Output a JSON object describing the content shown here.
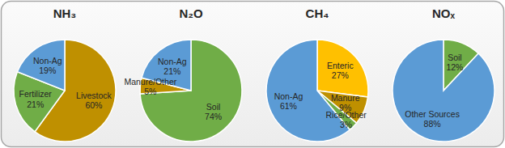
{
  "chart_data": [
    {
      "type": "pie",
      "title": "NH₃",
      "categories": [
        "Livestock",
        "Fertilizer",
        "Non-Ag"
      ],
      "values": [
        60,
        21,
        19
      ],
      "value_labels": [
        "60%",
        "21%",
        "19%"
      ],
      "colors": [
        "#BF9000",
        "#70AD47",
        "#5B9BD5"
      ],
      "data_labels": true
    },
    {
      "type": "pie",
      "title": "N₂O",
      "categories": [
        "Soil",
        "Manure/Other",
        "Non-Ag"
      ],
      "values": [
        74,
        5,
        21
      ],
      "value_labels": [
        "74%",
        "5%",
        "21%"
      ],
      "colors": [
        "#70AD47",
        "#BF9000",
        "#5B9BD5"
      ],
      "data_labels": true
    },
    {
      "type": "pie",
      "title": "CH₄",
      "categories": [
        "Enteric",
        "Manure",
        "Rice/Other",
        "Non-Ag"
      ],
      "values": [
        27,
        9,
        3,
        61
      ],
      "value_labels": [
        "27%",
        "9%",
        "3%",
        "61%"
      ],
      "colors": [
        "#FFC000",
        "#BF9000",
        "#70AD47",
        "#5B9BD5"
      ],
      "data_labels": true
    },
    {
      "type": "pie",
      "title": "NOₓ",
      "categories": [
        "Soil",
        "Other Sources"
      ],
      "values": [
        12,
        88
      ],
      "value_labels": [
        "12%",
        "88%"
      ],
      "colors": [
        "#70AD47",
        "#5B9BD5"
      ],
      "data_labels": true
    }
  ]
}
